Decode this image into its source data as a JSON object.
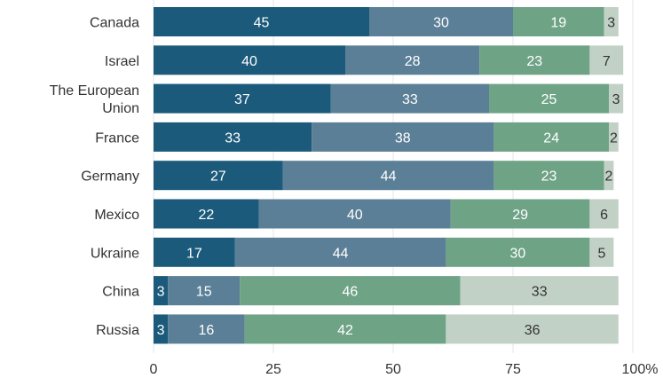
{
  "chart_data": {
    "type": "bar",
    "orientation": "horizontal",
    "stacked": true,
    "categories": [
      "Canada",
      "Israel",
      "The European Union",
      "France",
      "Germany",
      "Mexico",
      "Ukraine",
      "China",
      "Russia"
    ],
    "category_lines": [
      [
        "Canada"
      ],
      [
        "Israel"
      ],
      [
        "The European",
        "Union"
      ],
      [
        "France"
      ],
      [
        "Germany"
      ],
      [
        "Mexico"
      ],
      [
        "Ukraine"
      ],
      [
        "China"
      ],
      [
        "Russia"
      ]
    ],
    "series": [
      {
        "values": [
          45,
          40,
          37,
          33,
          27,
          22,
          17,
          3,
          3
        ],
        "color": "#1b5a7a",
        "label_color": "#ffffff"
      },
      {
        "values": [
          30,
          28,
          33,
          38,
          44,
          40,
          44,
          15,
          16
        ],
        "color": "#5b7f96",
        "label_color": "#ffffff"
      },
      {
        "values": [
          19,
          23,
          25,
          24,
          23,
          29,
          30,
          46,
          42
        ],
        "color": "#6fa386",
        "label_color": "#ffffff"
      },
      {
        "values": [
          3,
          7,
          3,
          2,
          2,
          6,
          5,
          33,
          36
        ],
        "color": "#c2d1c6",
        "label_color": "#333333"
      }
    ],
    "xlim": [
      0,
      100
    ],
    "xticks": [
      0,
      25,
      50,
      75,
      100
    ],
    "xtick_labels": [
      "0",
      "25",
      "50",
      "75",
      "100%"
    ],
    "grid": true
  }
}
